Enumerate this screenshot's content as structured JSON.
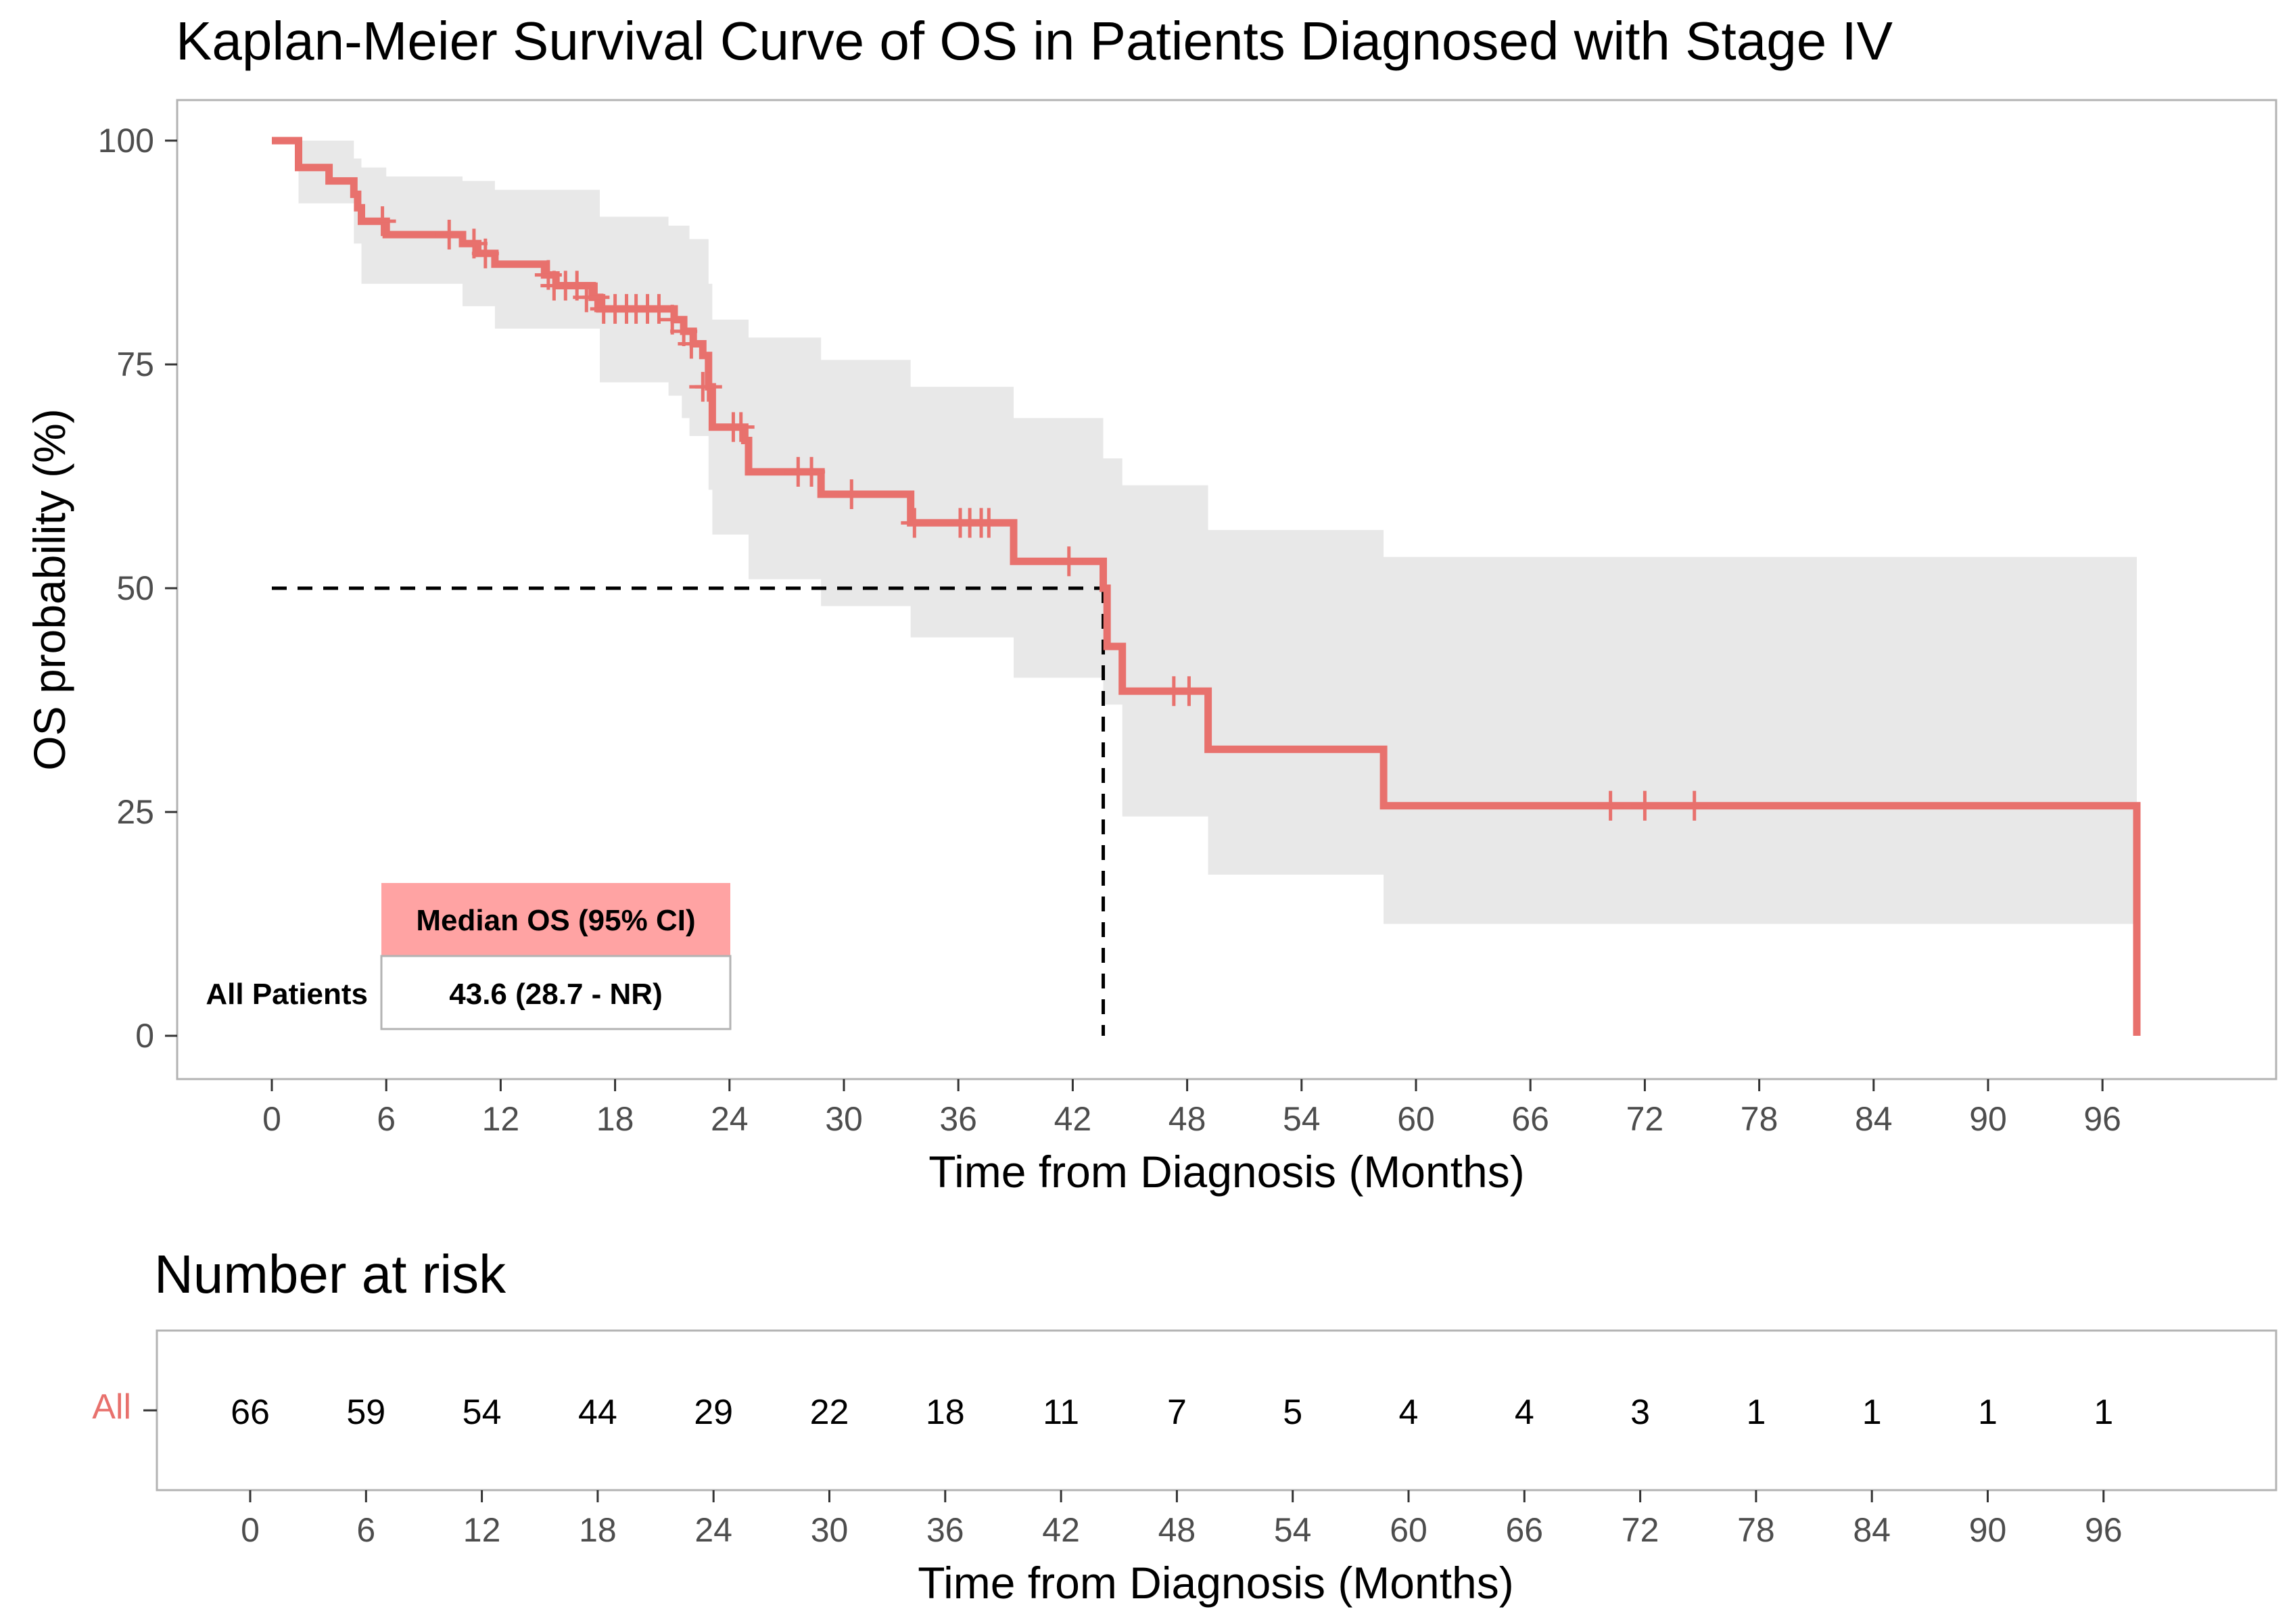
{
  "colors": {
    "curve": "#e8716d",
    "ci_band": "#e8e8e8",
    "table_header": "#ffa3a3",
    "strata": "#e8716d",
    "frame": "#b3b3b3",
    "tick_text": "#4d4d4d"
  },
  "chart_data": {
    "type": "line",
    "subtype": "kaplan-meier",
    "title": "Kaplan-Meier Survival Curve of OS in Patients Diagnosed with Stage IV",
    "xlabel": "Time from Diagnosis (Months)",
    "ylabel": "OS probability (%)",
    "xlim": [
      0,
      99
    ],
    "ylim": [
      0,
      100
    ],
    "x_ticks": [
      0,
      6,
      12,
      18,
      24,
      30,
      36,
      42,
      48,
      54,
      60,
      66,
      72,
      78,
      84,
      90,
      96
    ],
    "y_ticks": [
      0,
      25,
      50,
      75,
      100
    ],
    "grid": false,
    "series": [
      {
        "name": "All",
        "steps": [
          [
            0,
            100
          ],
          [
            1.4,
            97
          ],
          [
            3.0,
            95.5
          ],
          [
            4.3,
            94
          ],
          [
            4.5,
            92.5
          ],
          [
            4.7,
            91
          ],
          [
            6.0,
            89.5
          ],
          [
            10.0,
            88.5
          ],
          [
            10.8,
            87.4
          ],
          [
            11.7,
            86.2
          ],
          [
            14.3,
            85
          ],
          [
            14.9,
            83.8
          ],
          [
            16.8,
            82.5
          ],
          [
            17.2,
            81.2
          ],
          [
            21.1,
            80
          ],
          [
            21.6,
            78.7
          ],
          [
            22.1,
            77.3
          ],
          [
            22.6,
            76
          ],
          [
            22.9,
            72.5
          ],
          [
            23.1,
            68
          ],
          [
            24.8,
            66.5
          ],
          [
            25.0,
            63
          ],
          [
            28.8,
            60.5
          ],
          [
            33.5,
            57.3
          ],
          [
            38.9,
            53
          ],
          [
            43.6,
            50
          ],
          [
            43.8,
            43.5
          ],
          [
            44.6,
            38.5
          ],
          [
            49.1,
            32
          ],
          [
            58.3,
            25.7
          ],
          [
            97.8,
            25.7
          ],
          [
            97.8,
            0
          ]
        ],
        "ci_steps": [
          [
            0,
            100,
            100
          ],
          [
            1.4,
            100,
            93
          ],
          [
            4.3,
            98,
            88.5
          ],
          [
            4.7,
            97,
            84
          ],
          [
            6.0,
            96,
            84
          ],
          [
            10.0,
            95.5,
            81.5
          ],
          [
            11.7,
            94.5,
            79
          ],
          [
            17.2,
            91.5,
            73
          ],
          [
            20.8,
            90.5,
            71.5
          ],
          [
            21.5,
            90.5,
            69
          ],
          [
            21.9,
            89,
            67
          ],
          [
            22.9,
            84,
            61
          ],
          [
            23.1,
            80,
            56
          ],
          [
            25.0,
            78,
            51
          ],
          [
            28.8,
            75.5,
            48
          ],
          [
            33.5,
            72.5,
            44.5
          ],
          [
            38.9,
            69,
            40
          ],
          [
            43.6,
            64.5,
            37
          ],
          [
            44.6,
            61.5,
            24.5
          ],
          [
            49.1,
            56.5,
            18
          ],
          [
            58.3,
            53.5,
            12.5
          ],
          [
            97.8,
            53.5,
            12.5
          ]
        ],
        "censored": [
          [
            5.8,
            91
          ],
          [
            9.3,
            89.5
          ],
          [
            10.6,
            88.5
          ],
          [
            11.2,
            87.4
          ],
          [
            14.5,
            85
          ],
          [
            14.8,
            83.8
          ],
          [
            15.4,
            83.8
          ],
          [
            16.0,
            83.8
          ],
          [
            16.5,
            82.5
          ],
          [
            17.0,
            82.5
          ],
          [
            17.4,
            81.2
          ],
          [
            18.0,
            81.2
          ],
          [
            18.6,
            81.2
          ],
          [
            19.1,
            81.2
          ],
          [
            19.7,
            81.2
          ],
          [
            20.3,
            81.2
          ],
          [
            21.0,
            80
          ],
          [
            21.6,
            78.7
          ],
          [
            22.0,
            77.3
          ],
          [
            22.6,
            72.5
          ],
          [
            22.9,
            72.5
          ],
          [
            24.2,
            68
          ],
          [
            24.6,
            68
          ],
          [
            27.6,
            63
          ],
          [
            28.3,
            63
          ],
          [
            30.4,
            60.5
          ],
          [
            33.7,
            57.3
          ],
          [
            36.1,
            57.3
          ],
          [
            36.6,
            57.3
          ],
          [
            37.2,
            57.3
          ],
          [
            37.6,
            57.3
          ],
          [
            41.8,
            53
          ],
          [
            47.3,
            38.5
          ],
          [
            48.1,
            38.5
          ],
          [
            70.2,
            25.7
          ],
          [
            72.0,
            25.7
          ],
          [
            74.6,
            25.7
          ]
        ],
        "median_reference": {
          "x": 43.6,
          "y": 50
        }
      }
    ],
    "median_table": {
      "header": "Median OS (95% CI)",
      "row_label": "All Patients",
      "value": "43.6 (28.7 - NR)"
    },
    "risk_table": {
      "title": "Number at risk",
      "strata_label": "All",
      "xlabel": "Time from Diagnosis (Months)",
      "times": [
        0,
        6,
        12,
        18,
        24,
        30,
        36,
        42,
        48,
        54,
        60,
        66,
        72,
        78,
        84,
        90,
        96
      ],
      "counts": [
        66,
        59,
        54,
        44,
        29,
        22,
        18,
        11,
        7,
        5,
        4,
        4,
        3,
        1,
        1,
        1,
        1
      ]
    }
  }
}
